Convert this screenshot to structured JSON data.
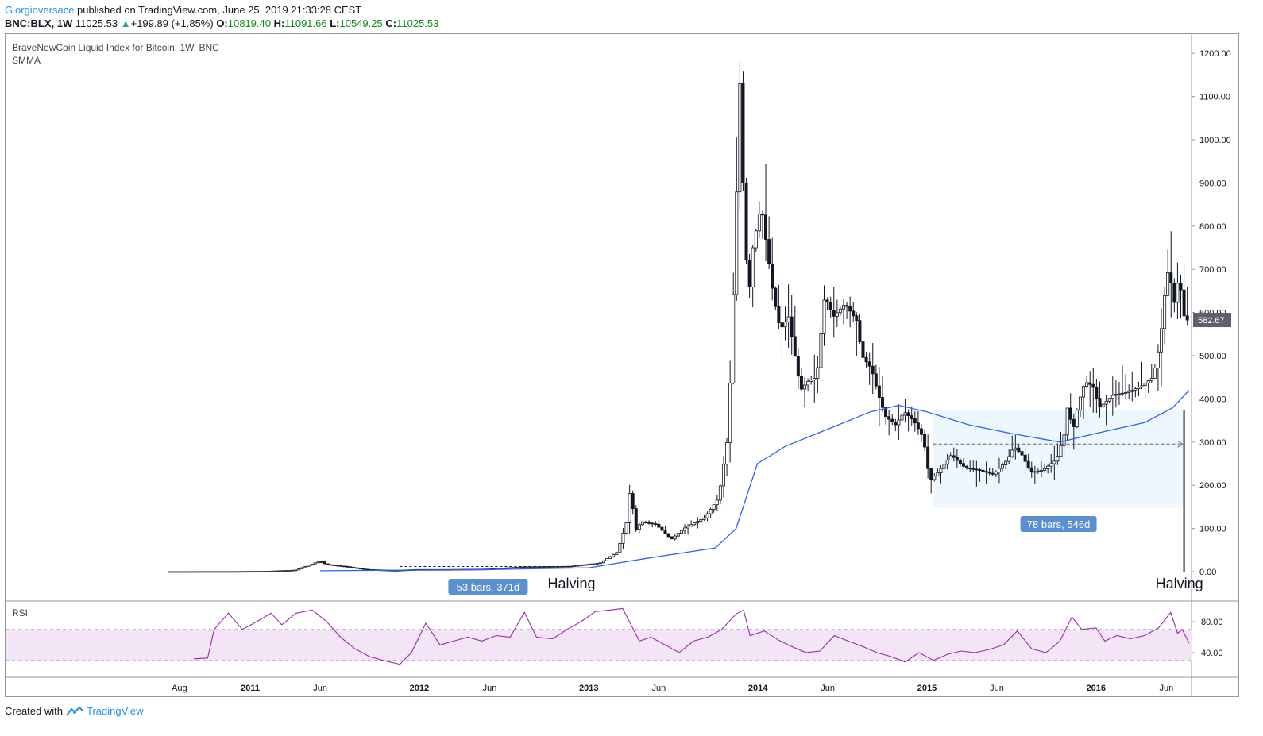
{
  "header": {
    "author": "Giorgioversace",
    "published": " published on TradingView.com, June 25, 2019 21:33:28 CEST",
    "symbol": "BNC:BLX, 1W",
    "last": "11025.53",
    "change": "+199.89 (+1.85%)",
    "open_label": "O:",
    "open": "10819.40",
    "high_label": "H:",
    "high": "11091.66",
    "low_label": "L:",
    "low": "10549.25",
    "close_label": "C:",
    "close": "11025.53"
  },
  "legend": {
    "title": "BraveNewCoin Liquid Index for Bitcoin, 1W, BNC",
    "indicator": "SMMA"
  },
  "rsi": {
    "title": "RSI"
  },
  "footer": {
    "created_with": "Created with",
    "brand": "TradingView"
  },
  "colors": {
    "candle_up": "#ffffff",
    "candle_down": "#131722",
    "smma": "#2962ff",
    "rsi_line": "#9c27b0",
    "rsi_band": "#f3e5f5",
    "range_fill": "#e3f2fd",
    "range_label": "#5b8fcf",
    "price_tag": "#5d606b"
  },
  "chart_data": {
    "type": "candlestick",
    "price_axis": {
      "ticks": [
        0,
        100,
        200,
        300,
        400,
        500,
        600,
        700,
        800,
        900,
        1000,
        1100,
        1200
      ],
      "tick_labels": [
        "0.00",
        "100.00",
        "200.00",
        "300.00",
        "400.00",
        "500.00",
        "600.00",
        "700.00",
        "800.00",
        "900.00",
        "1000.00",
        "1100.00",
        "1200.00"
      ],
      "ylim": [
        0,
        1220
      ]
    },
    "time_axis": {
      "labels": [
        {
          "text": "Aug",
          "date": "2010-08-01"
        },
        {
          "text": "2011",
          "date": "2011-01-01"
        },
        {
          "text": "Jun",
          "date": "2011-06-01"
        },
        {
          "text": "2012",
          "date": "2012-01-01"
        },
        {
          "text": "Jun",
          "date": "2012-06-01"
        },
        {
          "text": "2013",
          "date": "2013-01-01"
        },
        {
          "text": "Jun",
          "date": "2013-06-01"
        },
        {
          "text": "2014",
          "date": "2014-01-01"
        },
        {
          "text": "Jun",
          "date": "2014-06-01"
        },
        {
          "text": "2015",
          "date": "2015-01-01"
        },
        {
          "text": "Jun",
          "date": "2015-06-01"
        },
        {
          "text": "2016",
          "date": "2016-01-01"
        },
        {
          "text": "Jun",
          "date": "2016-06-01"
        }
      ],
      "range": [
        "2010-07-10",
        "2016-07-20"
      ]
    },
    "last_price": {
      "value": 582.67,
      "label": "582.67"
    },
    "weekly_close_path": [
      [
        "2010-07-17",
        0.06
      ],
      [
        "2010-12-01",
        0.25
      ],
      [
        "2011-02-15",
        1.0
      ],
      [
        "2011-04-15",
        3.5
      ],
      [
        "2011-06-08",
        25
      ],
      [
        "2011-06-20",
        17
      ],
      [
        "2011-08-01",
        12
      ],
      [
        "2011-09-15",
        5
      ],
      [
        "2011-11-15",
        2.8
      ],
      [
        "2012-01-01",
        5
      ],
      [
        "2012-03-01",
        5
      ],
      [
        "2012-06-01",
        6
      ],
      [
        "2012-08-15",
        11
      ],
      [
        "2012-11-28",
        12.5
      ],
      [
        "2013-02-01",
        20
      ],
      [
        "2013-03-10",
        45
      ],
      [
        "2013-04-01",
        120
      ],
      [
        "2013-04-10",
        230
      ],
      [
        "2013-04-15",
        90
      ],
      [
        "2013-05-01",
        115
      ],
      [
        "2013-06-01",
        110
      ],
      [
        "2013-07-05",
        75
      ],
      [
        "2013-08-01",
        100
      ],
      [
        "2013-09-15",
        125
      ],
      [
        "2013-10-15",
        170
      ],
      [
        "2013-11-05",
        320
      ],
      [
        "2013-11-18",
        700
      ],
      [
        "2013-11-30",
        1130
      ],
      [
        "2013-12-07",
        900
      ],
      [
        "2013-12-18",
        620
      ],
      [
        "2013-12-28",
        750
      ],
      [
        "2014-01-15",
        850
      ],
      [
        "2014-02-10",
        640
      ],
      [
        "2014-02-25",
        560
      ],
      [
        "2014-03-15",
        590
      ],
      [
        "2014-04-10",
        420
      ],
      [
        "2014-04-25",
        440
      ],
      [
        "2014-05-15",
        450
      ],
      [
        "2014-06-01",
        640
      ],
      [
        "2014-06-20",
        590
      ],
      [
        "2014-07-15",
        620
      ],
      [
        "2014-08-10",
        580
      ],
      [
        "2014-08-20",
        500
      ],
      [
        "2014-09-10",
        470
      ],
      [
        "2014-09-25",
        410
      ],
      [
        "2014-10-10",
        360
      ],
      [
        "2014-11-01",
        340
      ],
      [
        "2014-11-20",
        370
      ],
      [
        "2014-12-10",
        350
      ],
      [
        "2014-12-31",
        310
      ],
      [
        "2015-01-14",
        210
      ],
      [
        "2015-02-01",
        230
      ],
      [
        "2015-03-01",
        270
      ],
      [
        "2015-04-01",
        240
      ],
      [
        "2015-05-01",
        235
      ],
      [
        "2015-06-01",
        225
      ],
      [
        "2015-07-01",
        260
      ],
      [
        "2015-07-15",
        290
      ],
      [
        "2015-08-01",
        270
      ],
      [
        "2015-08-20",
        230
      ],
      [
        "2015-09-15",
        235
      ],
      [
        "2015-10-15",
        260
      ],
      [
        "2015-11-01",
        320
      ],
      [
        "2015-11-04",
        390
      ],
      [
        "2015-11-20",
        330
      ],
      [
        "2015-12-01",
        390
      ],
      [
        "2015-12-15",
        440
      ],
      [
        "2016-01-01",
        430
      ],
      [
        "2016-01-15",
        380
      ],
      [
        "2016-02-15",
        410
      ],
      [
        "2016-03-15",
        415
      ],
      [
        "2016-04-15",
        430
      ],
      [
        "2016-05-10",
        450
      ],
      [
        "2016-05-25",
        530
      ],
      [
        "2016-06-05",
        650
      ],
      [
        "2016-06-15",
        720
      ],
      [
        "2016-06-22",
        600
      ],
      [
        "2016-07-01",
        670
      ],
      [
        "2016-07-10",
        650
      ],
      [
        "2016-07-17",
        582.67
      ]
    ],
    "smma": [
      [
        "2011-06-01",
        2
      ],
      [
        "2012-06-01",
        5
      ],
      [
        "2013-01-01",
        9
      ],
      [
        "2013-05-01",
        30
      ],
      [
        "2013-08-01",
        45
      ],
      [
        "2013-10-01",
        55
      ],
      [
        "2013-11-15",
        100
      ],
      [
        "2013-12-31",
        250
      ],
      [
        "2014-03-01",
        290
      ],
      [
        "2014-06-01",
        330
      ],
      [
        "2014-09-01",
        370
      ],
      [
        "2014-11-01",
        385
      ],
      [
        "2015-01-01",
        370
      ],
      [
        "2015-04-01",
        340
      ],
      [
        "2015-07-01",
        320
      ],
      [
        "2015-10-15",
        300
      ],
      [
        "2016-01-01",
        320
      ],
      [
        "2016-04-15",
        345
      ],
      [
        "2016-06-15",
        380
      ],
      [
        "2016-07-20",
        420
      ]
    ],
    "rsi": {
      "ylim": [
        20,
        100
      ],
      "band": [
        30,
        70
      ],
      "tick_labels": [
        "40.00",
        "80.00"
      ],
      "ticks": [
        40,
        80
      ],
      "values": [
        [
          "2010-09-01",
          32
        ],
        [
          "2010-10-01",
          33
        ],
        [
          "2010-10-15",
          70
        ],
        [
          "2010-11-15",
          91
        ],
        [
          "2010-12-15",
          70
        ],
        [
          "2011-01-15",
          80
        ],
        [
          "2011-02-15",
          91
        ],
        [
          "2011-03-10",
          76
        ],
        [
          "2011-04-10",
          91
        ],
        [
          "2011-05-15",
          95
        ],
        [
          "2011-06-15",
          80
        ],
        [
          "2011-07-15",
          60
        ],
        [
          "2011-08-15",
          45
        ],
        [
          "2011-09-15",
          35
        ],
        [
          "2011-10-15",
          30
        ],
        [
          "2011-11-20",
          25
        ],
        [
          "2011-12-15",
          40
        ],
        [
          "2012-01-15",
          78
        ],
        [
          "2012-02-15",
          50
        ],
        [
          "2012-03-15",
          55
        ],
        [
          "2012-04-15",
          60
        ],
        [
          "2012-05-15",
          55
        ],
        [
          "2012-06-15",
          62
        ],
        [
          "2012-07-15",
          60
        ],
        [
          "2012-08-15",
          92
        ],
        [
          "2012-09-10",
          60
        ],
        [
          "2012-10-15",
          58
        ],
        [
          "2012-11-15",
          70
        ],
        [
          "2012-12-15",
          80
        ],
        [
          "2013-01-15",
          93
        ],
        [
          "2013-02-15",
          95
        ],
        [
          "2013-03-15",
          97
        ],
        [
          "2013-04-20",
          55
        ],
        [
          "2013-05-15",
          60
        ],
        [
          "2013-06-15",
          50
        ],
        [
          "2013-07-15",
          40
        ],
        [
          "2013-08-15",
          55
        ],
        [
          "2013-09-15",
          60
        ],
        [
          "2013-10-15",
          70
        ],
        [
          "2013-11-15",
          90
        ],
        [
          "2013-12-01",
          95
        ],
        [
          "2013-12-15",
          62
        ],
        [
          "2014-01-15",
          68
        ],
        [
          "2014-02-15",
          56
        ],
        [
          "2014-03-15",
          48
        ],
        [
          "2014-04-15",
          40
        ],
        [
          "2014-05-15",
          42
        ],
        [
          "2014-06-15",
          62
        ],
        [
          "2014-07-15",
          55
        ],
        [
          "2014-08-15",
          48
        ],
        [
          "2014-09-15",
          40
        ],
        [
          "2014-10-15",
          35
        ],
        [
          "2014-11-15",
          28
        ],
        [
          "2014-12-15",
          40
        ],
        [
          "2015-01-15",
          30
        ],
        [
          "2015-02-15",
          38
        ],
        [
          "2015-03-15",
          42
        ],
        [
          "2015-04-15",
          40
        ],
        [
          "2015-05-15",
          44
        ],
        [
          "2015-06-15",
          50
        ],
        [
          "2015-07-15",
          68
        ],
        [
          "2015-08-15",
          45
        ],
        [
          "2015-09-15",
          40
        ],
        [
          "2015-10-15",
          55
        ],
        [
          "2015-11-10",
          86
        ],
        [
          "2015-12-01",
          70
        ],
        [
          "2016-01-01",
          72
        ],
        [
          "2016-01-20",
          55
        ],
        [
          "2016-02-15",
          62
        ],
        [
          "2016-03-15",
          58
        ],
        [
          "2016-04-15",
          62
        ],
        [
          "2016-05-15",
          72
        ],
        [
          "2016-06-10",
          92
        ],
        [
          "2016-06-25",
          65
        ],
        [
          "2016-07-05",
          70
        ],
        [
          "2016-07-20",
          52
        ]
      ]
    },
    "annotations": [
      {
        "type": "date_range",
        "label": "53 bars, 371d",
        "from": "2011-11-20",
        "to": "2012-11-28",
        "y_from": 0,
        "y_to": 12
      },
      {
        "type": "text",
        "text": "Halving",
        "date": "2012-11-28",
        "price": -30
      },
      {
        "type": "date_price_range",
        "label": "78 bars, 546d",
        "from": "2015-01-14",
        "to": "2016-07-09",
        "y_from": 148,
        "y_to": 373
      },
      {
        "type": "vline",
        "text": "Halving",
        "date": "2016-07-09",
        "from": 0,
        "to": 373
      }
    ]
  }
}
